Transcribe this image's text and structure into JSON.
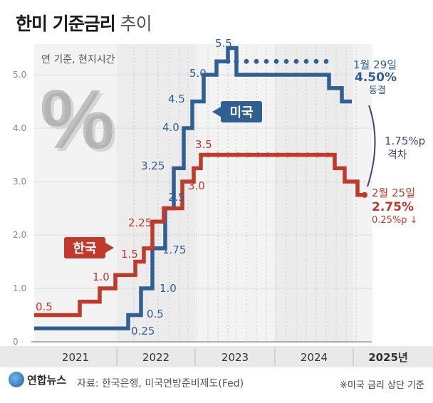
{
  "title": {
    "bold": "한미 기준금리",
    "light": " 추이"
  },
  "unit_note": "연 기준, 현지시간",
  "percent_glyph": "%",
  "colors": {
    "us": "#2f5f93",
    "kr": "#c0392b",
    "gap": "#4a3f7a",
    "axis": "#999999"
  },
  "chart_data": {
    "type": "line",
    "title": "한미 기준금리 추이",
    "ylabel": "연 기준, 현지시간",
    "ylim": [
      0,
      5.7
    ],
    "yticks": [
      "0",
      "1.0",
      "2.0",
      "3.0",
      "4.0",
      "5.0"
    ],
    "years": [
      "2021",
      "2022",
      "2023",
      "2024",
      "2025년"
    ],
    "series": [
      {
        "name": "미국",
        "step_values": [
          0.25,
          0.5,
          1.0,
          1.75,
          2.5,
          3.25,
          4.0,
          4.5,
          5.0,
          5.25,
          5.5,
          5.0,
          4.75,
          4.5
        ],
        "labels": [
          "0.25",
          "0.5",
          "1.0",
          "1.75",
          "2.5",
          "3.25",
          "4.0",
          "4.5",
          "5.0",
          "5.5"
        ]
      },
      {
        "name": "한국",
        "step_values": [
          0.5,
          0.75,
          1.0,
          1.25,
          1.5,
          1.75,
          2.25,
          2.5,
          3.0,
          3.25,
          3.5,
          3.25,
          3.0,
          2.75
        ],
        "labels": [
          "0.5",
          "1.0",
          "1.5",
          "2.25",
          "3.0",
          "3.5"
        ]
      }
    ],
    "annotations": {
      "us_date": "1월 29일",
      "us_rate": "4.50%",
      "us_status": "동결",
      "kr_date": "2월 25일",
      "kr_rate": "2.75%",
      "kr_change": "0.25%p ↓",
      "gap_value": "1.75%p",
      "gap_label": "격차",
      "us_tag": "미국",
      "kr_tag": "한국"
    }
  },
  "source": "자료: 한국은행, 미국연방준비제도(Fed)",
  "note": "※미국 금리 상단 기준",
  "logo": "연합뉴스"
}
